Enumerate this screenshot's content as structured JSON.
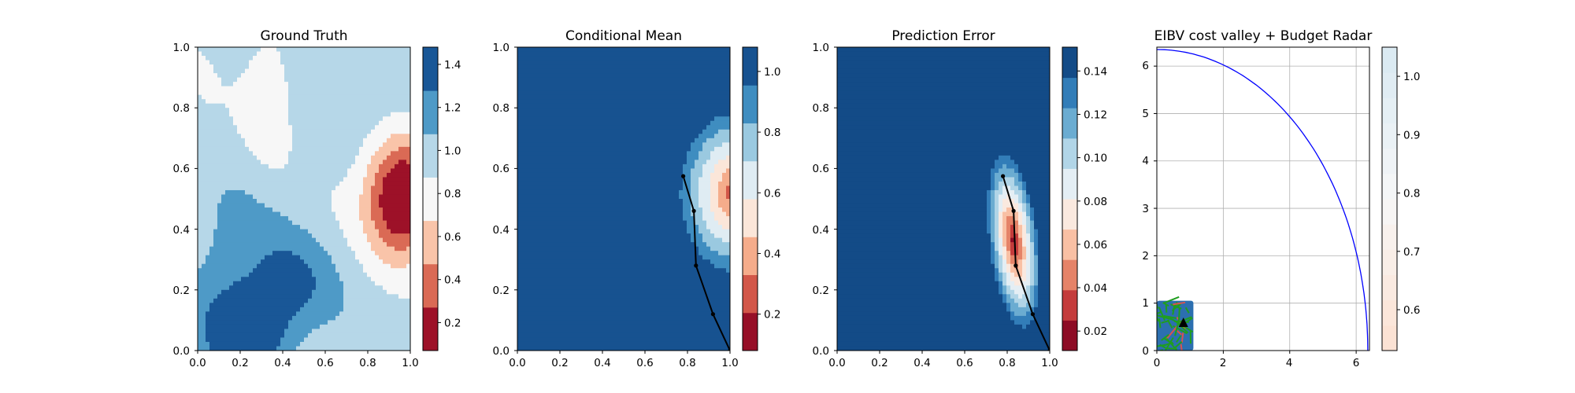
{
  "chart_data": [
    {
      "type": "heatmap",
      "title": "Ground Truth",
      "xlim": [
        0.0,
        1.0
      ],
      "ylim": [
        0.0,
        1.0
      ],
      "xticks": [
        "0.0",
        "0.2",
        "0.4",
        "0.6",
        "0.8",
        "1.0"
      ],
      "yticks": [
        "0.0",
        "0.2",
        "0.4",
        "0.6",
        "0.8",
        "1.0"
      ],
      "colormap": "RdBu",
      "colorbar": {
        "range": [
          0.07,
          1.48
        ],
        "ticks": [
          "0.2",
          "0.4",
          "0.6",
          "0.8",
          "1.0",
          "1.2",
          "1.4"
        ]
      },
      "features": [
        {
          "kind": "high-region",
          "x": 0.22,
          "y": 0.08,
          "value": 1.42
        },
        {
          "kind": "high-region",
          "x": 0.45,
          "y": 0.22,
          "value": 1.42
        },
        {
          "kind": "low-region",
          "x": 0.95,
          "y": 0.5,
          "value": 0.1
        },
        {
          "kind": "low-region",
          "x": 0.33,
          "y": 0.8,
          "value": 0.68
        }
      ]
    },
    {
      "type": "heatmap",
      "title": "Conditional Mean",
      "xlim": [
        0.0,
        1.0
      ],
      "ylim": [
        0.0,
        1.0
      ],
      "xticks": [
        "0.0",
        "0.2",
        "0.4",
        "0.6",
        "0.8",
        "1.0"
      ],
      "yticks": [
        "0.0",
        "0.2",
        "0.4",
        "0.6",
        "0.8",
        "1.0"
      ],
      "colormap": "RdBu",
      "colorbar": {
        "range": [
          0.08,
          1.08
        ],
        "ticks": [
          "0.2",
          "0.4",
          "0.6",
          "0.8",
          "1.0"
        ]
      },
      "path": {
        "x": [
          0.78,
          0.83,
          0.84,
          0.92,
          1.0
        ],
        "y": [
          0.575,
          0.46,
          0.28,
          0.12,
          0.0
        ]
      }
    },
    {
      "type": "heatmap",
      "title": "Prediction Error",
      "xlim": [
        0.0,
        1.0
      ],
      "ylim": [
        0.0,
        1.0
      ],
      "xticks": [
        "0.0",
        "0.2",
        "0.4",
        "0.6",
        "0.8",
        "1.0"
      ],
      "yticks": [
        "0.0",
        "0.2",
        "0.4",
        "0.6",
        "0.8",
        "1.0"
      ],
      "colormap": "RdBu",
      "colorbar": {
        "range": [
          0.011,
          0.151
        ],
        "ticks": [
          "0.02",
          "0.04",
          "0.06",
          "0.08",
          "0.10",
          "0.12",
          "0.14"
        ]
      },
      "path": {
        "x": [
          0.78,
          0.83,
          0.84,
          0.92,
          1.0
        ],
        "y": [
          0.575,
          0.46,
          0.28,
          0.12,
          0.0
        ]
      }
    },
    {
      "type": "line",
      "title": "EIBV cost valley + Budget Radar",
      "xlim": [
        0,
        6.4
      ],
      "ylim": [
        0,
        6.4
      ],
      "xticks": [
        "0",
        "2",
        "4",
        "6"
      ],
      "yticks": [
        "0",
        "1",
        "2",
        "3",
        "4",
        "5",
        "6"
      ],
      "grid": true,
      "series": [
        {
          "kind": "arc",
          "color": "#0000ff",
          "radius": 6.35,
          "center": [
            0,
            0
          ]
        }
      ],
      "inset": {
        "kind": "cost-valley",
        "x_range": [
          0,
          1.1
        ],
        "y_range": [
          0,
          1.05
        ],
        "marker": [
          0.8,
          0.58
        ]
      },
      "colormap": "RdBu",
      "colorbar": {
        "range": [
          0.53,
          1.05
        ],
        "ticks": [
          "0.6",
          "0.7",
          "0.8",
          "0.9",
          "1.0"
        ]
      }
    }
  ]
}
